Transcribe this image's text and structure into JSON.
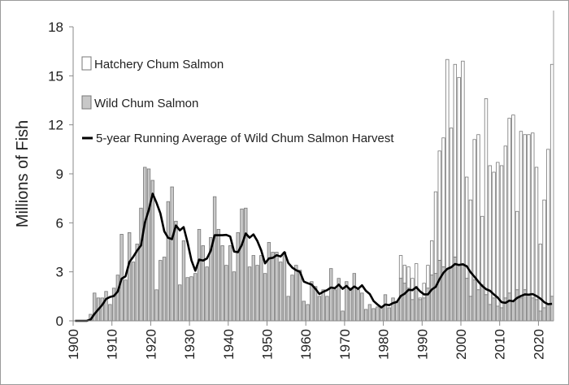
{
  "chart_data": {
    "type": "bar",
    "title": "",
    "xlabel": "",
    "ylabel": "Millions of Fish",
    "ylim": [
      0,
      18
    ],
    "yticks": [
      0,
      3,
      6,
      9,
      12,
      15,
      18
    ],
    "xlim": [
      1900,
      2024
    ],
    "xticks": [
      1900,
      1910,
      1920,
      1930,
      1940,
      1950,
      1960,
      1970,
      1980,
      1990,
      2000,
      2010,
      2020
    ],
    "stacked": true,
    "grid": false,
    "legend_position": "top-left",
    "legend": {
      "hatchery": "Hatchery Chum Salmon",
      "wild": "Wild Chum Salmon",
      "running_avg": "5-year Running Average of Wild Chum Salmon Harvest"
    },
    "x": [
      1900,
      1901,
      1902,
      1903,
      1904,
      1905,
      1906,
      1907,
      1908,
      1909,
      1910,
      1911,
      1912,
      1913,
      1914,
      1915,
      1916,
      1917,
      1918,
      1919,
      1920,
      1921,
      1922,
      1923,
      1924,
      1925,
      1926,
      1927,
      1928,
      1929,
      1930,
      1931,
      1932,
      1933,
      1934,
      1935,
      1936,
      1937,
      1938,
      1939,
      1940,
      1941,
      1942,
      1943,
      1944,
      1945,
      1946,
      1947,
      1948,
      1949,
      1950,
      1951,
      1952,
      1953,
      1954,
      1955,
      1956,
      1957,
      1958,
      1959,
      1960,
      1961,
      1962,
      1963,
      1964,
      1965,
      1966,
      1967,
      1968,
      1969,
      1970,
      1971,
      1972,
      1973,
      1974,
      1975,
      1976,
      1977,
      1978,
      1979,
      1980,
      1981,
      1982,
      1983,
      1984,
      1985,
      1986,
      1987,
      1988,
      1989,
      1990,
      1991,
      1992,
      1993,
      1994,
      1995,
      1996,
      1997,
      1998,
      1999,
      2000,
      2001,
      2002,
      2003,
      2004,
      2005,
      2006,
      2007,
      2008,
      2009,
      2010,
      2011,
      2012,
      2013,
      2014,
      2015,
      2016,
      2017,
      2018,
      2019,
      2020,
      2021,
      2022,
      2023
    ],
    "series": [
      {
        "name": "Wild Chum Salmon",
        "color": "#c8c8c8",
        "values": [
          0,
          0,
          0,
          0,
          0.4,
          1.7,
          1.4,
          1.4,
          1.8,
          1.0,
          2.0,
          2.8,
          5.3,
          2.5,
          5.4,
          3.6,
          4.7,
          6.9,
          9.4,
          9.3,
          8.6,
          1.9,
          3.7,
          3.9,
          7.3,
          8.2,
          6.1,
          2.2,
          4.9,
          2.65,
          2.7,
          2.9,
          5.6,
          4.6,
          3.3,
          5.1,
          7.6,
          5.6,
          4.6,
          3.4,
          4.6,
          3.0,
          5.4,
          6.85,
          6.9,
          3.3,
          4.0,
          3.4,
          4.0,
          2.9,
          4.8,
          4.2,
          4.2,
          3.6,
          4.2,
          1.5,
          2.8,
          3.4,
          3.1,
          1.2,
          1.0,
          2.4,
          2.1,
          1.5,
          1.9,
          1.5,
          3.2,
          1.9,
          2.6,
          0.6,
          2.4,
          2.0,
          2.9,
          1.9,
          1.7,
          0.7,
          1.0,
          0.75,
          0.85,
          0.8,
          1.6,
          0.8,
          1.4,
          1.2,
          2.6,
          2.3,
          2.0,
          1.3,
          2.1,
          1.3,
          1.4,
          2.0,
          2.8,
          2.9,
          3.7,
          3.3,
          3.2,
          3.3,
          3.9,
          3.4,
          3.5,
          2.6,
          1.5,
          2.5,
          1.9,
          2.2,
          1.6,
          1.0,
          1.4,
          0.9,
          0.8,
          1.4,
          1.7,
          1.2,
          1.9,
          1.4,
          1.9,
          1.6,
          1.4,
          1.3,
          0.6,
          0.8,
          1.0,
          1.5
        ]
      },
      {
        "name": "Hatchery Chum Salmon",
        "color": "#ffffff",
        "values": [
          0,
          0,
          0,
          0,
          0,
          0,
          0,
          0,
          0,
          0,
          0,
          0,
          0,
          0,
          0,
          0,
          0,
          0,
          0,
          0,
          0,
          0,
          0,
          0,
          0,
          0,
          0,
          0,
          0,
          0,
          0,
          0,
          0,
          0,
          0,
          0,
          0,
          0,
          0,
          0,
          0,
          0,
          0,
          0,
          0,
          0,
          0,
          0,
          0,
          0,
          0,
          0,
          0,
          0,
          0,
          0,
          0,
          0,
          0,
          0,
          0,
          0,
          0,
          0,
          0,
          0,
          0,
          0,
          0,
          0,
          0,
          0,
          0,
          0,
          0,
          0,
          0,
          0,
          0,
          0,
          0,
          0,
          0,
          0,
          1.4,
          1.1,
          1.3,
          1.3,
          1.4,
          0.1,
          0.9,
          1.4,
          2.1,
          5.0,
          6.7,
          7.9,
          12.8,
          8.5,
          11.8,
          11.5,
          12.4,
          6.2,
          5.9,
          8.6,
          9.5,
          4.2,
          12.0,
          8.5,
          7.7,
          8.8,
          8.7,
          9.3,
          10.7,
          11.4,
          4.8,
          10.2,
          9.5,
          9.8,
          10.1,
          8.1,
          4.1,
          6.6,
          9.5,
          14.2
        ]
      }
    ],
    "running_average": {
      "name": "5-year Running Average of Wild Chum Salmon Harvest",
      "window": 5,
      "color": "#000000"
    }
  }
}
